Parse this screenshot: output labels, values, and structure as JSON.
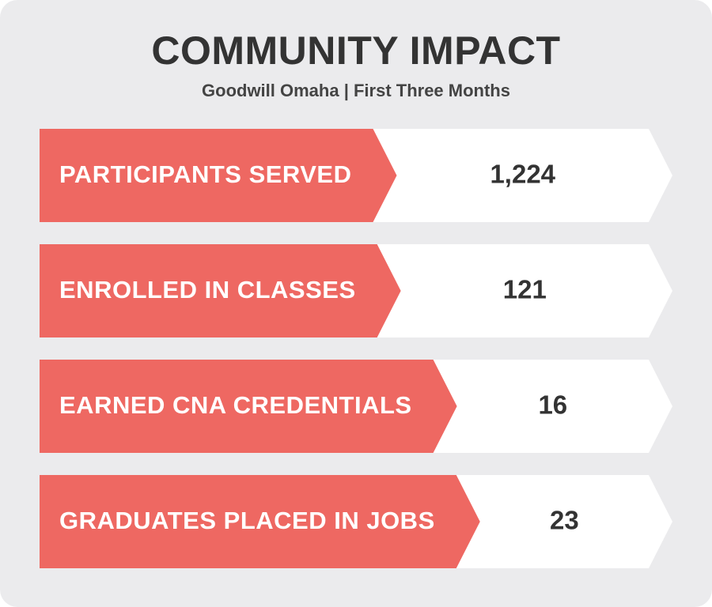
{
  "header": {
    "title": "COMMUNITY IMPACT",
    "subtitle": "Goodwill Omaha | First Three Months"
  },
  "items": [
    {
      "label": "PARTICIPANTS SERVED",
      "value": "1,224"
    },
    {
      "label": "ENROLLED IN CLASSES",
      "value": "121"
    },
    {
      "label": "EARNED CNA CREDENTIALS",
      "value": "16"
    },
    {
      "label": "GRADUATES PLACED IN JOBS",
      "value": "23"
    }
  ]
}
